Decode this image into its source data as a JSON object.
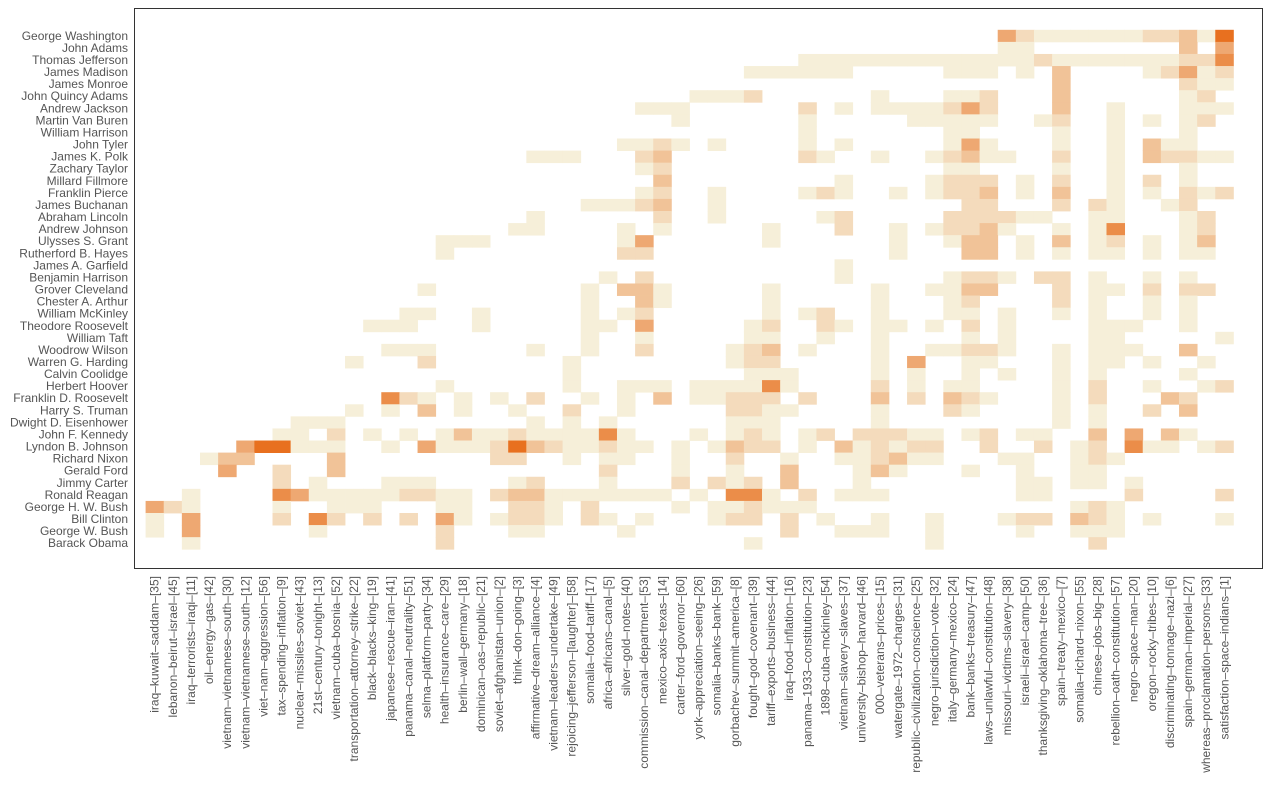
{
  "chart_data": {
    "type": "heatmap",
    "title": "",
    "xlabel": "",
    "ylabel": "",
    "grid": false,
    "legend": "none",
    "color_scale": {
      "low": "#f6efd9",
      "high": "#e8701f"
    },
    "rows": [
      "George Washington",
      "John Adams",
      "Thomas Jefferson",
      "James Madison",
      "James Monroe",
      "John Quincy Adams",
      "Andrew Jackson",
      "Martin Van Buren",
      "William Harrison",
      "John Tyler",
      "James K. Polk",
      "Zachary Taylor",
      "Millard Fillmore",
      "Franklin Pierce",
      "James Buchanan",
      "Abraham Lincoln",
      "Andrew Johnson",
      "Ulysses S. Grant",
      "Rutherford B. Hayes",
      "James A. Garfield",
      "Benjamin Harrison",
      "Grover Cleveland",
      "Chester A. Arthur",
      "William McKinley",
      "Theodore Roosevelt",
      "William Taft",
      "Woodrow Wilson",
      "Warren G. Harding",
      "Calvin Coolidge",
      "Herbert Hoover",
      "Franklin D. Roosevelt",
      "Harry S. Truman",
      "Dwight D. Eisenhower",
      "John F. Kennedy",
      "Lyndon B. Johnson",
      "Richard Nixon",
      "Gerald Ford",
      "Jimmy Carter",
      "Ronald Reagan",
      "George H. W. Bush",
      "Bill Clinton",
      "George W. Bush",
      "Barack Obama"
    ],
    "columns": [
      "iraq–kuwait–saddam–[35]",
      "lebanon–beirut–israel–[45]",
      "iraq–terrorists–iraqi–[11]",
      "oil–energy–gas–[42]",
      "vietnam–vietnamese–south–[30]",
      "vietnam–vietnamese–south–[12]",
      "viet–nam–aggression–[56]",
      "tax–spending–inflation–[9]",
      "nuclear–missiles–soviet–[43]",
      "21st–century–tonight–[13]",
      "vietnam–cuba–bosnia–[52]",
      "transportation–attorney–strike–[22]",
      "black–blacks–king–[19]",
      "japanese–rescue–iran–[41]",
      "panama–canal–neutrality–[51]",
      "selma–platform–party–[34]",
      "health–insurance–care–[29]",
      "berlin–wall–germany–[18]",
      "dominican–oas–republic–[21]",
      "soviet–afghanistan–union–[2]",
      "think–don–going–[3]",
      "affirmative–dream–alliance–[4]",
      "vietnam–leaders–undertake–[49]",
      "rejoicing–jefferson–[laughter]–[58]",
      "somalia–food–tariff–[17]",
      "africa–africans–canal–[5]",
      "silver–gold–notes–[40]",
      "commission–canal–department–[53]",
      "mexico–axis–texas–[14]",
      "carter–ford–governor–[60]",
      "york–appreciation–seeing–[26]",
      "somalia–banks–bank–[59]",
      "gorbachev–summit–america–[8]",
      "fought–god–covenant–[39]",
      "tariff–exports–business–[44]",
      "iraq–food–inflation–[16]",
      "panama–1933–constitution–[23]",
      "1898–cuba–mckinley–[54]",
      "vietnam–slavery–slaves–[37]",
      "university–bishop–harvard–[46]",
      "000–veterans–prices–[15]",
      "watergate–1972–charges–[31]",
      "republic–civilization–conscience–[25]",
      "negro–jurisdiction–vote–[32]",
      "italy–germany–mexico–[24]",
      "bank–banks–treasury–[47]",
      "laws–unlawful–constitution–[48]",
      "missouri–victims–slavery–[38]",
      "israeli–israel–camp–[50]",
      "thanksgiving–oklahoma–tree–[36]",
      "spain–treaty–mexico–[7]",
      "somalia–richard–nixon–[55]",
      "chinese–jobs–big–[28]",
      "rebellion–oath–constitution–[57]",
      "negro–space–man–[20]",
      "oregon–rocky–tribes–[10]",
      "discriminating–tonnage–nazi–[6]",
      "spain–german–imperial–[27]",
      "whereas–proclamation–persons–[33]",
      "satisfaction–space–indians–[1]"
    ],
    "cells": [
      [
        0,
        "47:4,48:2,49:1,50:1,51:1,52:1,53:1,54:1,55:2,56:2,57:3,58:1,59:6"
      ],
      [
        1,
        "47:1,48:1,57:3,59:4"
      ],
      [
        2,
        "36:1,37:1,38:1,39:1,40:1,41:1,42:1,43:1,44:1,45:1,46:1,47:1,48:1,49:2,50:1,51:1,52:1,53:1,54:1,55:1,56:1,57:2,58:2,59:5"
      ],
      [
        3,
        "33:1,34:1,35:1,36:1,37:1,38:1,44:1,45:1,46:1,48:1,50:3,55:1,56:2,57:4,58:1,59:2"
      ],
      [
        4,
        "50:3,57:2,58:1,59:1"
      ],
      [
        5,
        "30:1,31:1,32:1,33:2,40:1,44:1,45:1,46:2,50:3,57:1,58:2"
      ],
      [
        6,
        "27:1,28:1,29:1,36:2,38:1,40:1,41:1,42:1,43:1,44:2,45:4,46:2,50:3,53:1,57:1,58:1,59:1"
      ],
      [
        7,
        "29:1,36:1,42:1,43:1,44:1,45:1,46:1,49:1,50:2,53:1,55:1,57:1,58:2"
      ],
      [
        8,
        "36:1,44:1,45:1,50:1,53:1,57:1"
      ],
      [
        9,
        "26:1,27:1,28:2,29:1,31:1,36:1,38:1,44:1,45:4,46:1,50:1,53:1,55:3,56:1,57:1"
      ],
      [
        10,
        "21:1,22:1,23:1,27:2,28:3,36:2,37:1,40:1,43:1,44:2,45:3,46:1,47:1,50:2,53:1,55:3,56:2,57:2,58:1,59:1"
      ],
      [
        11,
        "27:1,28:2,44:1,45:1,50:1,53:1,57:1"
      ],
      [
        12,
        "28:3,38:1,43:1,44:2,45:2,46:2,48:1,50:2,53:1,55:2,57:1"
      ],
      [
        13,
        "27:1,28:2,31:1,36:1,37:2,38:1,41:1,43:1,44:2,45:2,46:3,48:1,50:3,53:1,55:1,57:2,58:1,59:2"
      ],
      [
        14,
        "24:1,25:1,26:1,27:2,28:3,31:1,45:2,46:2,50:2,52:2,53:1,56:1,57:2"
      ],
      [
        15,
        "21:1,28:2,31:1,37:1,38:2,44:2,45:2,46:2,47:2,48:1,49:1,52:1,53:1,57:1,58:2"
      ],
      [
        16,
        "20:1,21:1,26:1,28:1,34:1,38:2,41:1,43:1,44:2,45:2,46:3,47:1,50:1,52:1,53:5,57:1,58:2"
      ],
      [
        17,
        "16:1,17:1,18:1,26:1,27:4,34:1,41:1,44:1,45:3,46:3,48:1,50:3,52:1,53:2,55:1,57:1,58:3"
      ],
      [
        18,
        "16:1,26:2,27:2,41:1,45:3,46:3,48:1,50:1,52:1,53:1,55:1,57:1,58:1"
      ],
      [
        19,
        "38:1"
      ],
      [
        20,
        "25:1,27:2,38:1,44:1,45:2,46:2,47:1,49:2,50:2,52:1,55:1,57:1"
      ],
      [
        21,
        "15:1,24:1,26:3,27:3,28:1,34:1,40:1,43:1,44:1,45:3,46:3,50:2,52:1,53:1,55:2,57:2,58:2"
      ],
      [
        22,
        "24:1,27:3,28:1,34:1,40:1,44:1,45:2,50:2,52:1,55:1,57:1"
      ],
      [
        23,
        "14:1,15:1,18:1,24:1,26:1,27:2,34:1,36:1,37:2,40:1,44:1,45:1,47:1,50:1,52:1,55:1,57:1"
      ],
      [
        24,
        "12:1,13:1,14:1,18:1,24:1,25:1,27:4,33:1,34:2,37:2,38:1,40:1,41:1,43:1,45:2,47:1,52:1,53:1,54:1,57:1"
      ],
      [
        25,
        "24:1,27:1,33:1,34:1,37:1,40:1,45:1,47:1,52:1,53:1,59:1"
      ],
      [
        26,
        "13:1,14:1,15:1,21:1,24:1,27:2,32:1,33:2,34:3,36:1,40:1,43:1,44:1,45:2,46:2,47:1,50:1,52:1,53:1,54:1,57:3"
      ],
      [
        27,
        "11:1,15:2,23:1,32:1,33:2,34:2,40:1,42:4,45:1,46:1,50:1,52:1,53:1,55:1,58:1"
      ],
      [
        28,
        "23:1,33:1,34:1,35:1,40:1,42:1,45:1,47:1,50:1,52:1,57:1"
      ],
      [
        29,
        "16:1,23:1,26:1,27:1,28:1,30:1,31:1,32:1,33:1,34:5,35:1,40:2,42:1,44:1,45:1,50:1,52:2,55:1,58:1,59:2"
      ],
      [
        30,
        "13:5,14:2,15:1,17:1,19:1,21:2,24:1,26:1,28:3,30:1,31:1,32:2,33:2,34:2,36:2,40:3,42:2,44:3,45:2,46:1,50:1,52:2,56:3,57:2"
      ],
      [
        31,
        "11:1,13:1,15:3,17:1,20:1,23:2,26:1,32:2,33:2,34:1,35:1,40:1,44:2,45:1,50:1,52:1,55:2,57:3"
      ],
      [
        32,
        "8:1,9:1,10:1,21:1,23:1,25:1,32:1,33:1,34:1,40:1,50:1,52:1"
      ],
      [
        33,
        "7:1,8:1,10:2,12:1,14:1,16:1,17:3,18:1,19:1,20:2,21:1,22:1,23:1,24:1,25:5,26:1,30:1,32:1,33:2,34:1,36:1,37:2,39:2,40:2,41:2,42:1,43:1,45:1,46:2,48:1,49:1,52:3,54:4,56:3,57:1"
      ],
      [
        34,
        "5:4,6:6,7:6,8:1,9:1,10:1,13:1,15:4,16:1,17:1,18:1,19:2,20:6,21:3,22:2,23:1,24:1,25:2,26:1,27:1,29:1,31:1,32:3,33:2,34:2,36:1,38:3,39:1,40:2,41:1,42:2,43:2,46:2,49:2,51:1,52:2,54:5,55:1,56:1,58:1,59:2"
      ],
      [
        35,
        "3:1,4:3,5:3,10:3,19:2,20:2,23:1,25:1,26:1,29:1,32:2,35:1,38:1,39:1,40:2,41:3,42:1,43:1,47:1,48:1,51:1,52:2,53:1"
      ],
      [
        36,
        "4:4,7:2,10:3,25:2,29:1,32:1,35:3,39:1,40:3,41:1,45:1,48:1,51:1,52:1"
      ],
      [
        37,
        "7:2,9:1,13:1,14:1,15:1,20:1,21:2,25:1,29:2,31:2,32:1,33:2,35:3,39:1,48:1,49:1,51:1,52:1,54:1"
      ],
      [
        38,
        "2:1,7:5,8:4,9:1,10:1,11:1,12:1,13:1,14:2,15:2,16:1,17:1,19:2,20:3,21:3,22:1,23:1,24:1,25:1,26:1,27:1,28:1,30:1,32:5,33:5,34:1,36:2,38:1,39:1,40:1,48:1,49:1,54:2,59:2"
      ],
      [
        39,
        "0:4,1:2,2:1,7:1,10:1,11:1,12:1,16:1,17:1,20:2,21:2,22:1,24:2,29:1,31:1,32:1,33:2,34:1,35:1,36:1,51:1,52:2,53:1"
      ],
      [
        40,
        "0:1,2:4,7:2,9:5,10:2,12:2,14:2,16:4,17:1,19:1,20:2,21:2,22:1,24:2,25:1,27:1,31:1,32:2,33:2,35:2,37:1,40:1,43:1,47:1,48:2,49:2,51:3,52:2,53:1,55:1,59:1"
      ],
      [
        41,
        "0:1,2:4,9:1,16:2,20:1,21:1,26:1,35:2,38:1,39:1,40:1,43:1,48:1,51:1,52:1,53:1"
      ],
      [
        42,
        "2:1,16:2,33:1,43:1,52:2"
      ]
    ]
  }
}
